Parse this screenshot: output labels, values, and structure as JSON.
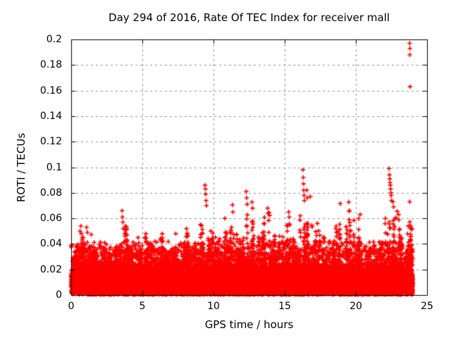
{
  "chart_data": {
    "type": "scatter",
    "title": "Day 294 of 2016, Rate Of TEC Index for receiver mall",
    "xlabel": "GPS time / hours",
    "ylabel": "ROTI / TECUs",
    "xlim": [
      0,
      25
    ],
    "ylim": [
      0,
      0.2
    ],
    "xticks": [
      "0",
      "5",
      "10",
      "15",
      "20",
      "25"
    ],
    "yticks": [
      "0",
      "0.02",
      "0.04",
      "0.06",
      "0.08",
      "0.1",
      "0.12",
      "0.14",
      "0.16",
      "0.18",
      "0.2"
    ],
    "grid": "dashed",
    "grid_color": "#909090",
    "axis_color": "#000000",
    "background_color": "#ffffff",
    "marker": "plus",
    "marker_color": "#ff0000",
    "series_name": "ROTI",
    "x_data_range_hours": [
      0,
      24
    ],
    "dense_band": {
      "description": "near-solid band of + markers along the whole day",
      "y_core_max": 0.018,
      "y_typical_max": 0.032
    },
    "envelope_bins_hours": 0.5,
    "envelope_max": [
      0.04,
      0.054,
      0.053,
      0.046,
      0.042,
      0.038,
      0.04,
      0.066,
      0.044,
      0.046,
      0.048,
      0.042,
      0.048,
      0.042,
      0.048,
      0.044,
      0.052,
      0.046,
      0.086,
      0.058,
      0.055,
      0.06,
      0.07,
      0.055,
      0.081,
      0.073,
      0.062,
      0.068,
      0.056,
      0.05,
      0.065,
      0.052,
      0.098,
      0.082,
      0.056,
      0.05,
      0.047,
      0.072,
      0.055,
      0.073,
      0.063,
      0.047,
      0.043,
      0.044,
      0.099,
      0.09,
      0.065,
      0.197
    ],
    "outliers": [
      [
        0.62,
        0.05
      ],
      [
        0.68,
        0.054
      ],
      [
        0.72,
        0.048
      ],
      [
        1.08,
        0.053
      ],
      [
        1.14,
        0.049
      ],
      [
        2.35,
        0.041
      ],
      [
        3.58,
        0.066
      ],
      [
        3.6,
        0.061
      ],
      [
        3.63,
        0.057
      ],
      [
        3.66,
        0.052
      ],
      [
        4.7,
        0.045
      ],
      [
        5.25,
        0.048
      ],
      [
        6.4,
        0.048
      ],
      [
        7.35,
        0.048
      ],
      [
        8.1,
        0.052
      ],
      [
        8.15,
        0.048
      ],
      [
        9.4,
        0.086
      ],
      [
        9.43,
        0.083
      ],
      [
        9.45,
        0.079
      ],
      [
        9.48,
        0.074
      ],
      [
        9.5,
        0.07
      ],
      [
        10.8,
        0.06
      ],
      [
        11.33,
        0.0705
      ],
      [
        11.36,
        0.065
      ],
      [
        12.3,
        0.081
      ],
      [
        12.33,
        0.076
      ],
      [
        12.36,
        0.071
      ],
      [
        12.7,
        0.0727
      ],
      [
        12.74,
        0.068
      ],
      [
        13.8,
        0.068
      ],
      [
        13.83,
        0.064
      ],
      [
        15.28,
        0.065
      ],
      [
        15.32,
        0.061
      ],
      [
        16.28,
        0.098
      ],
      [
        16.3,
        0.092
      ],
      [
        16.32,
        0.087
      ],
      [
        16.34,
        0.082
      ],
      [
        16.36,
        0.078
      ],
      [
        16.38,
        0.074
      ],
      [
        16.55,
        0.082
      ],
      [
        16.58,
        0.076
      ],
      [
        16.8,
        0.077
      ],
      [
        17.3,
        0.056
      ],
      [
        18.9,
        0.0715
      ],
      [
        19.5,
        0.0727
      ],
      [
        19.55,
        0.066
      ],
      [
        20.3,
        0.063
      ],
      [
        22.33,
        0.099
      ],
      [
        22.36,
        0.094
      ],
      [
        22.38,
        0.091
      ],
      [
        22.4,
        0.088
      ],
      [
        22.42,
        0.086
      ],
      [
        22.44,
        0.083
      ],
      [
        22.46,
        0.08
      ],
      [
        22.48,
        0.078
      ],
      [
        22.5,
        0.074
      ],
      [
        22.6,
        0.073
      ],
      [
        22.65,
        0.069
      ],
      [
        22.9,
        0.0655
      ],
      [
        23.0,
        0.063
      ],
      [
        23.05,
        0.051
      ],
      [
        23.78,
        0.073
      ],
      [
        23.78,
        0.197
      ],
      [
        23.8,
        0.193
      ],
      [
        23.79,
        0.188
      ],
      [
        23.81,
        0.163
      ]
    ],
    "seed": 294
  }
}
